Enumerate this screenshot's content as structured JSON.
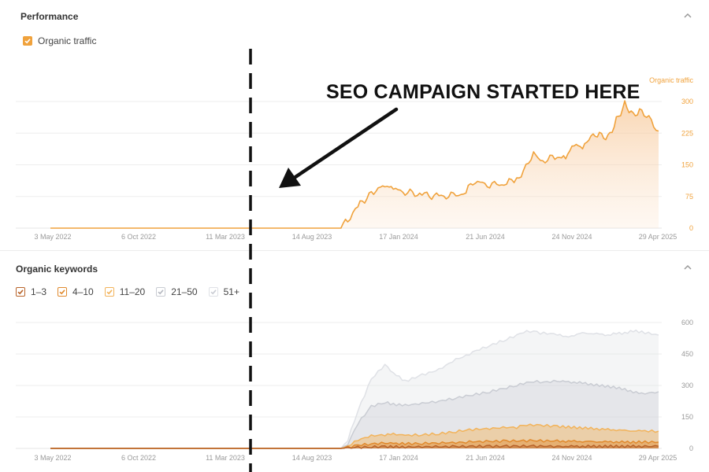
{
  "performance": {
    "title": "Performance",
    "legend": [
      {
        "label": "Organic traffic",
        "color": "#f0a23c"
      }
    ]
  },
  "keywords": {
    "title": "Organic keywords",
    "legend": [
      {
        "label": "1–3",
        "color": "#b8632a"
      },
      {
        "label": "4–10",
        "color": "#e08a2e"
      },
      {
        "label": "11–20",
        "color": "#f2b35a"
      },
      {
        "label": "21–50",
        "color": "#c9ccd3"
      },
      {
        "label": "51+",
        "color": "#dfe1e6"
      }
    ]
  },
  "annotation": {
    "text": "SEO CAMPAIGN STARTED HERE"
  },
  "chart_data": [
    {
      "type": "area",
      "title": "Performance",
      "series_label": "Organic traffic",
      "x_tick_labels": [
        "3 May 2022",
        "6 Oct 2022",
        "11 Mar 2023",
        "14 Aug 2023",
        "17 Jan 2024",
        "21 Jun 2024",
        "24 Nov 2024",
        "29 Apr 2025"
      ],
      "y_ticks": [
        0,
        75,
        150,
        225,
        300
      ],
      "ylim": [
        0,
        300
      ],
      "xlim_months": [
        0,
        36
      ],
      "series": [
        {
          "name": "Organic traffic",
          "x_months": [
            0,
            10,
            17.2,
            17.6,
            18.2,
            19,
            19.8,
            20.3,
            21,
            22,
            23,
            24,
            24.6,
            25,
            26,
            27,
            27.6,
            28,
            28.6,
            29,
            30,
            30.5,
            31,
            31.5,
            32,
            32.5,
            33,
            33.5,
            34,
            34.5,
            35,
            36
          ],
          "values": [
            0,
            0,
            0,
            20,
            50,
            85,
            100,
            92,
            85,
            80,
            75,
            78,
            85,
            110,
            103,
            105,
            118,
            132,
            183,
            158,
            170,
            168,
            198,
            188,
            215,
            220,
            212,
            255,
            295,
            270,
            280,
            230
          ]
        }
      ]
    },
    {
      "type": "area",
      "title": "Organic keywords",
      "x_tick_labels": [
        "3 May 2022",
        "6 Oct 2022",
        "11 Mar 2023",
        "14 Aug 2023",
        "17 Jan 2024",
        "21 Jun 2024",
        "24 Nov 2024",
        "29 Apr 2025"
      ],
      "y_ticks": [
        0,
        150,
        300,
        450,
        600
      ],
      "ylim": [
        0,
        600
      ],
      "xlim_months": [
        0,
        36
      ],
      "x_months": [
        0,
        10,
        17.2,
        17.6,
        18.2,
        19,
        19.8,
        20.3,
        21,
        22,
        23,
        24,
        24.6,
        25,
        26,
        27,
        27.6,
        28,
        28.6,
        29,
        30,
        30.5,
        31,
        31.5,
        32,
        32.5,
        33,
        33.5,
        34,
        34.5,
        35,
        36
      ],
      "series": [
        {
          "name": "51+",
          "color": "#dfe1e6",
          "values": [
            0,
            0,
            0,
            40,
            180,
            330,
            400,
            360,
            320,
            350,
            375,
            425,
            440,
            460,
            490,
            520,
            540,
            555,
            560,
            550,
            545,
            530,
            540,
            550,
            548,
            545,
            540,
            548,
            550,
            560,
            555,
            540
          ]
        },
        {
          "name": "21–50",
          "color": "#c9ccd3",
          "values": [
            0,
            0,
            0,
            20,
            120,
            200,
            220,
            210,
            205,
            215,
            225,
            240,
            250,
            255,
            270,
            290,
            300,
            310,
            320,
            315,
            320,
            318,
            315,
            312,
            305,
            300,
            295,
            290,
            280,
            270,
            260,
            270
          ]
        },
        {
          "name": "11–20",
          "color": "#f2b35a",
          "values": [
            0,
            0,
            0,
            10,
            40,
            60,
            65,
            68,
            62,
            65,
            70,
            80,
            88,
            90,
            95,
            100,
            100,
            110,
            112,
            110,
            105,
            102,
            100,
            98,
            95,
            92,
            90,
            88,
            85,
            84,
            83,
            82
          ]
        },
        {
          "name": "4–10",
          "color": "#e08a2e",
          "values": [
            0,
            0,
            0,
            5,
            15,
            22,
            25,
            24,
            22,
            24,
            26,
            28,
            30,
            32,
            33,
            35,
            35,
            36,
            37,
            36,
            35,
            34,
            34,
            33,
            32,
            32,
            31,
            31,
            30,
            30,
            30,
            30
          ]
        },
        {
          "name": "1–3",
          "color": "#b8632a",
          "values": [
            0,
            0,
            0,
            2,
            5,
            7,
            8,
            8,
            7,
            8,
            8,
            9,
            9,
            10,
            10,
            10,
            10,
            11,
            11,
            11,
            10,
            10,
            10,
            10,
            10,
            10,
            10,
            10,
            10,
            10,
            10,
            10
          ]
        }
      ]
    }
  ]
}
